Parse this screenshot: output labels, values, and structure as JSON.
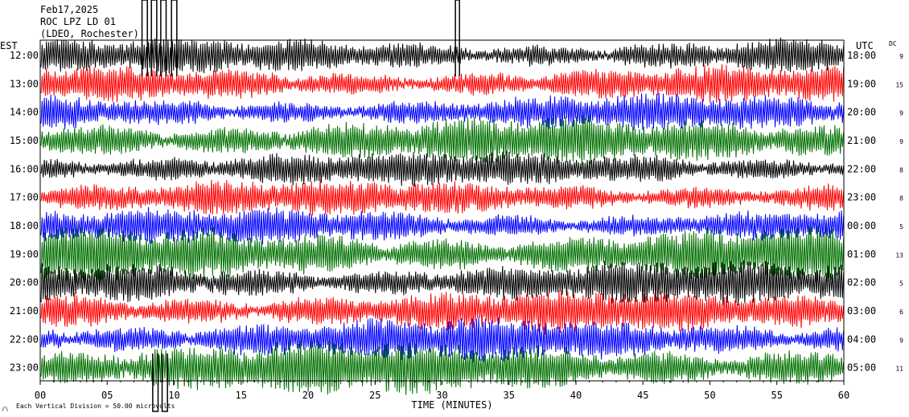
{
  "header": {
    "date": "Feb17,2025",
    "station": "ROC LPZ LD 01",
    "network": "(LDEO, Rochester)"
  },
  "labels": {
    "left_tz": "EST",
    "right_tz": "UTC",
    "dc": "DC",
    "x_axis": "TIME (MINUTES)",
    "scale": "Each Vertical Division =   50.00 microvolts"
  },
  "colors": {
    "trace_cycle": [
      "#000000",
      "#ff0000",
      "#0000ff",
      "#007000"
    ],
    "frame": "#000000",
    "background": "#ffffff"
  },
  "chart_data": {
    "type": "seismogram",
    "x_ticks": [
      "00",
      "05",
      "10",
      "15",
      "20",
      "25",
      "30",
      "35",
      "40",
      "45",
      "50",
      "55",
      "60"
    ],
    "xlim": [
      0,
      60
    ],
    "rows": [
      {
        "left": "12:00",
        "right": "18:00",
        "dc": "9"
      },
      {
        "left": "13:00",
        "right": "19:00",
        "dc": "15"
      },
      {
        "left": "14:00",
        "right": "20:00",
        "dc": "9"
      },
      {
        "left": "15:00",
        "right": "21:00",
        "dc": "9"
      },
      {
        "left": "16:00",
        "right": "22:00",
        "dc": "8"
      },
      {
        "left": "17:00",
        "right": "23:00",
        "dc": "8"
      },
      {
        "left": "18:00",
        "right": "00:00",
        "dc": "5"
      },
      {
        "left": "19:00",
        "right": "01:00",
        "dc": "13"
      },
      {
        "left": "20:00",
        "right": "02:00",
        "dc": "5"
      },
      {
        "left": "21:00",
        "right": "03:00",
        "dc": "6"
      },
      {
        "left": "22:00",
        "right": "04:00",
        "dc": "9"
      },
      {
        "left": "23:00",
        "right": "05:00",
        "dc": "11"
      }
    ]
  }
}
